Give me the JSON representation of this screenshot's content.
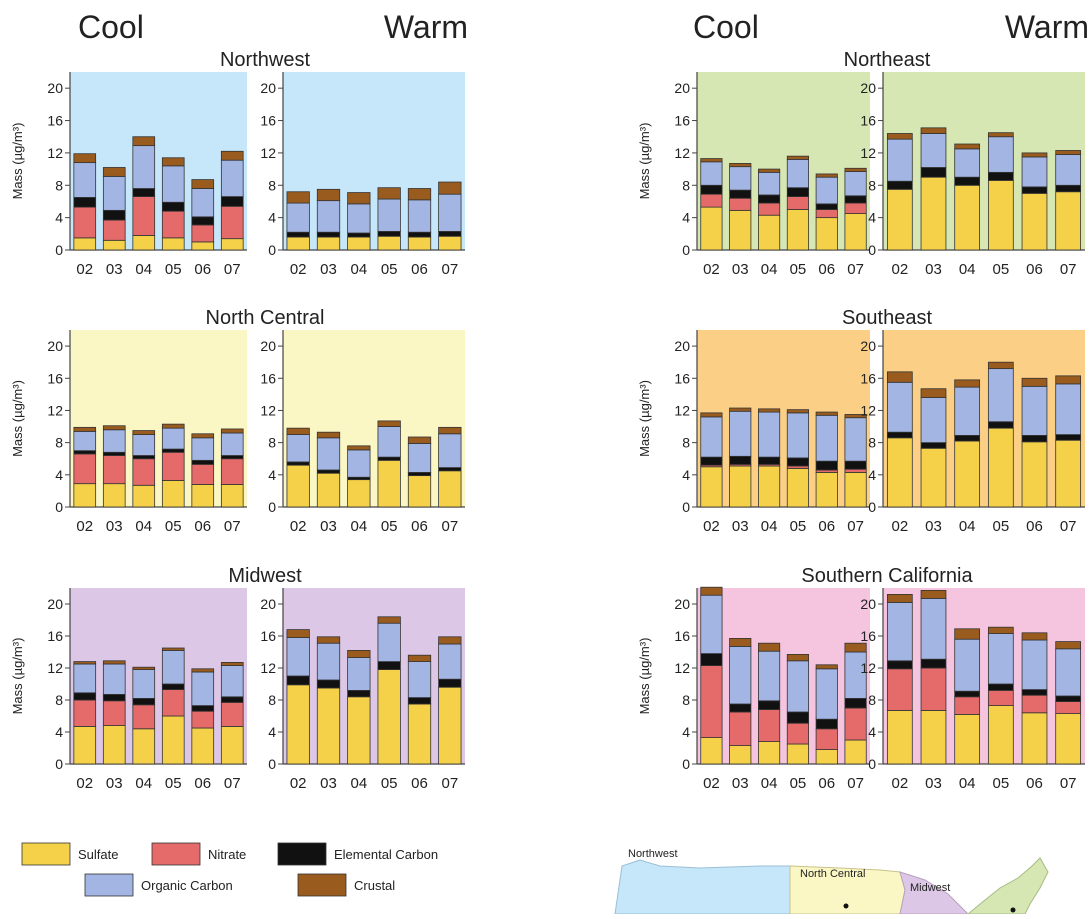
{
  "colors": {
    "sulfate": "#f5d14a",
    "nitrate": "#e56a6a",
    "elemental_carbon": "#111111",
    "organic_carbon": "#a3b5e3",
    "crustal": "#9a5c1e",
    "bg_northwest": "#c6e6f9",
    "bg_north_central": "#fbf7c5",
    "bg_midwest": "#dcc7e6",
    "bg_northeast": "#d7e7b4",
    "bg_southeast": "#fbd086",
    "bg_southern_california": "#f5c4de",
    "axis": "#444444"
  },
  "headers": {
    "left_cool": "Cool",
    "left_warm": "Warm",
    "right_cool": "Cool",
    "right_warm": "Warm"
  },
  "axis": {
    "ylabel": "Mass (µg/m³)",
    "yticks": [
      "0",
      "4",
      "8",
      "12",
      "16",
      "20"
    ],
    "ylim": [
      0,
      22
    ]
  },
  "chart_data": {
    "type": "bar",
    "stacked": true,
    "components": [
      "Sulfate",
      "Nitrate",
      "Elemental Carbon",
      "Organic Carbon",
      "Crustal"
    ],
    "categories": [
      "02",
      "03",
      "04",
      "05",
      "06",
      "07"
    ],
    "regions": [
      {
        "key": "northwest",
        "title": "Northwest",
        "background": "bg_northwest",
        "cool": [
          [
            1.5,
            3.8,
            1.2,
            4.3,
            1.1
          ],
          [
            1.2,
            2.5,
            1.2,
            4.2,
            1.1
          ],
          [
            1.8,
            4.8,
            1.0,
            5.3,
            1.1
          ],
          [
            1.5,
            3.3,
            1.1,
            4.5,
            1.0
          ],
          [
            1.0,
            2.1,
            1.0,
            3.5,
            1.1
          ],
          [
            1.4,
            4.0,
            1.2,
            4.5,
            1.1
          ]
        ],
        "warm": [
          [
            1.6,
            0.0,
            0.6,
            3.6,
            1.4
          ],
          [
            1.6,
            0.0,
            0.6,
            3.9,
            1.4
          ],
          [
            1.6,
            0.0,
            0.5,
            3.6,
            1.4
          ],
          [
            1.7,
            0.0,
            0.6,
            4.0,
            1.4
          ],
          [
            1.6,
            0.0,
            0.6,
            4.0,
            1.4
          ],
          [
            1.7,
            0.0,
            0.6,
            4.6,
            1.5
          ]
        ]
      },
      {
        "key": "northeast",
        "title": "Northeast",
        "background": "bg_northeast",
        "cool": [
          [
            5.3,
            1.6,
            1.1,
            2.9,
            0.4
          ],
          [
            4.9,
            1.5,
            1.0,
            2.9,
            0.4
          ],
          [
            4.3,
            1.5,
            1.0,
            2.8,
            0.4
          ],
          [
            5.0,
            1.6,
            1.1,
            3.5,
            0.4
          ],
          [
            4.0,
            1.0,
            0.7,
            3.3,
            0.4
          ],
          [
            4.5,
            1.3,
            0.9,
            3.0,
            0.4
          ]
        ],
        "warm": [
          [
            7.5,
            0.0,
            1.0,
            5.2,
            0.7
          ],
          [
            9.0,
            0.0,
            1.2,
            4.2,
            0.7
          ],
          [
            8.0,
            0.0,
            1.0,
            3.5,
            0.6
          ],
          [
            8.6,
            0.0,
            1.0,
            4.4,
            0.5
          ],
          [
            7.0,
            0.0,
            0.8,
            3.7,
            0.5
          ],
          [
            7.2,
            0.0,
            0.8,
            3.8,
            0.5
          ]
        ]
      },
      {
        "key": "north_central",
        "title": "North Central",
        "background": "bg_north_central",
        "cool": [
          [
            2.9,
            3.7,
            0.4,
            2.4,
            0.5
          ],
          [
            2.9,
            3.5,
            0.4,
            2.8,
            0.5
          ],
          [
            2.7,
            3.3,
            0.4,
            2.6,
            0.5
          ],
          [
            3.3,
            3.5,
            0.4,
            2.6,
            0.5
          ],
          [
            2.8,
            2.5,
            0.5,
            2.8,
            0.5
          ],
          [
            2.8,
            3.2,
            0.4,
            2.8,
            0.5
          ]
        ],
        "warm": [
          [
            5.2,
            0.0,
            0.4,
            3.4,
            0.8
          ],
          [
            4.2,
            0.0,
            0.4,
            4.0,
            0.7
          ],
          [
            3.4,
            0.0,
            0.3,
            3.4,
            0.5
          ],
          [
            5.8,
            0.0,
            0.4,
            3.8,
            0.7
          ],
          [
            3.9,
            0.0,
            0.4,
            3.6,
            0.8
          ],
          [
            4.5,
            0.0,
            0.4,
            4.2,
            0.8
          ]
        ]
      },
      {
        "key": "southeast",
        "title": "Southeast",
        "background": "bg_southeast",
        "cool": [
          [
            5.0,
            0.2,
            1.0,
            5.0,
            0.5
          ],
          [
            5.1,
            0.2,
            1.0,
            5.6,
            0.4
          ],
          [
            5.1,
            0.2,
            0.9,
            5.6,
            0.4
          ],
          [
            4.8,
            0.3,
            1.0,
            5.6,
            0.4
          ],
          [
            4.3,
            0.3,
            1.1,
            5.7,
            0.4
          ],
          [
            4.3,
            0.4,
            1.0,
            5.4,
            0.4
          ]
        ],
        "warm": [
          [
            8.6,
            0.0,
            0.7,
            6.2,
            1.3
          ],
          [
            7.3,
            0.0,
            0.7,
            5.6,
            1.1
          ],
          [
            8.2,
            0.0,
            0.7,
            6.0,
            0.9
          ],
          [
            9.8,
            0.0,
            0.8,
            6.6,
            0.8
          ],
          [
            8.1,
            0.0,
            0.8,
            6.1,
            1.0
          ],
          [
            8.3,
            0.0,
            0.7,
            6.3,
            1.0
          ]
        ]
      },
      {
        "key": "midwest",
        "title": "Midwest",
        "background": "bg_midwest",
        "cool": [
          [
            4.7,
            3.3,
            0.9,
            3.6,
            0.3
          ],
          [
            4.8,
            3.1,
            0.8,
            3.8,
            0.4
          ],
          [
            4.4,
            3.0,
            0.8,
            3.6,
            0.3
          ],
          [
            6.0,
            3.3,
            0.7,
            4.2,
            0.3
          ],
          [
            4.5,
            2.1,
            0.7,
            4.2,
            0.4
          ],
          [
            4.7,
            3.0,
            0.7,
            3.9,
            0.4
          ]
        ],
        "warm": [
          [
            9.9,
            0.0,
            1.1,
            4.8,
            1.0
          ],
          [
            9.5,
            0.0,
            1.0,
            4.6,
            0.8
          ],
          [
            8.4,
            0.0,
            0.8,
            4.1,
            0.9
          ],
          [
            11.8,
            0.0,
            1.0,
            4.8,
            0.8
          ],
          [
            7.5,
            0.0,
            0.8,
            4.5,
            0.8
          ],
          [
            9.6,
            0.0,
            1.0,
            4.4,
            0.9
          ]
        ]
      },
      {
        "key": "southern_california",
        "title": "Southern California",
        "background": "bg_southern_california",
        "cool": [
          [
            3.3,
            9.0,
            1.5,
            7.3,
            1.0
          ],
          [
            2.3,
            4.2,
            1.0,
            7.2,
            1.0
          ],
          [
            2.8,
            4.0,
            1.1,
            6.2,
            1.0
          ],
          [
            2.5,
            2.6,
            1.4,
            6.4,
            0.8
          ],
          [
            1.8,
            2.6,
            1.2,
            6.3,
            0.5
          ],
          [
            3.0,
            4.0,
            1.2,
            5.8,
            1.1
          ]
        ],
        "warm": [
          [
            6.7,
            5.2,
            1.0,
            7.3,
            1.0
          ],
          [
            6.7,
            5.3,
            1.1,
            7.6,
            1.0
          ],
          [
            6.2,
            2.2,
            0.7,
            6.5,
            1.3
          ],
          [
            7.3,
            1.9,
            0.8,
            6.3,
            0.8
          ],
          [
            6.4,
            2.2,
            0.7,
            6.2,
            0.9
          ],
          [
            6.3,
            1.5,
            0.7,
            5.9,
            0.9
          ]
        ]
      }
    ]
  },
  "legend": [
    {
      "key": "sulfate",
      "label": "Sulfate"
    },
    {
      "key": "nitrate",
      "label": "Nitrate"
    },
    {
      "key": "elemental_carbon",
      "label": "Elemental Carbon"
    },
    {
      "key": "organic_carbon",
      "label": "Organic Carbon"
    },
    {
      "key": "crustal",
      "label": "Crustal"
    }
  ],
  "map": {
    "regions": [
      "Northwest",
      "North Central",
      "Midwest"
    ]
  }
}
